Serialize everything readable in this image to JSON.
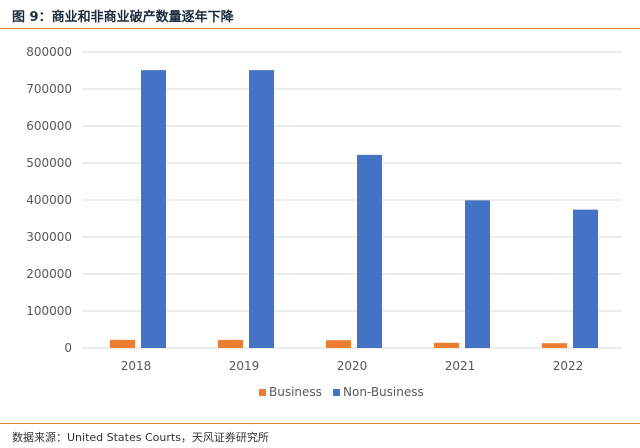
{
  "figure": {
    "title": "图 9：商业和非商业破产数量逐年下降",
    "source": "数据来源：United States Courts，天风证券研究所"
  },
  "colors": {
    "Business": "#ed7d31",
    "Non-Business": "#4472c4",
    "rule": "#d98a3c",
    "grid": "#d9d9d9"
  },
  "chart_data": {
    "type": "bar",
    "categories": [
      "2018",
      "2019",
      "2020",
      "2021",
      "2022"
    ],
    "series": [
      {
        "name": "Business",
        "values": [
          22000,
          22000,
          21000,
          14000,
          13000
        ]
      },
      {
        "name": "Non-Business",
        "values": [
          751000,
          751000,
          522000,
          399000,
          374000
        ]
      }
    ],
    "ylim": [
      0,
      800000
    ],
    "yticks": [
      0,
      100000,
      200000,
      300000,
      400000,
      500000,
      600000,
      700000,
      800000
    ],
    "ytick_labels": [
      "0",
      "100000",
      "200000",
      "300000",
      "400000",
      "500000",
      "600000",
      "700000",
      "800000"
    ],
    "grid": true,
    "legend": "bottom-center"
  }
}
